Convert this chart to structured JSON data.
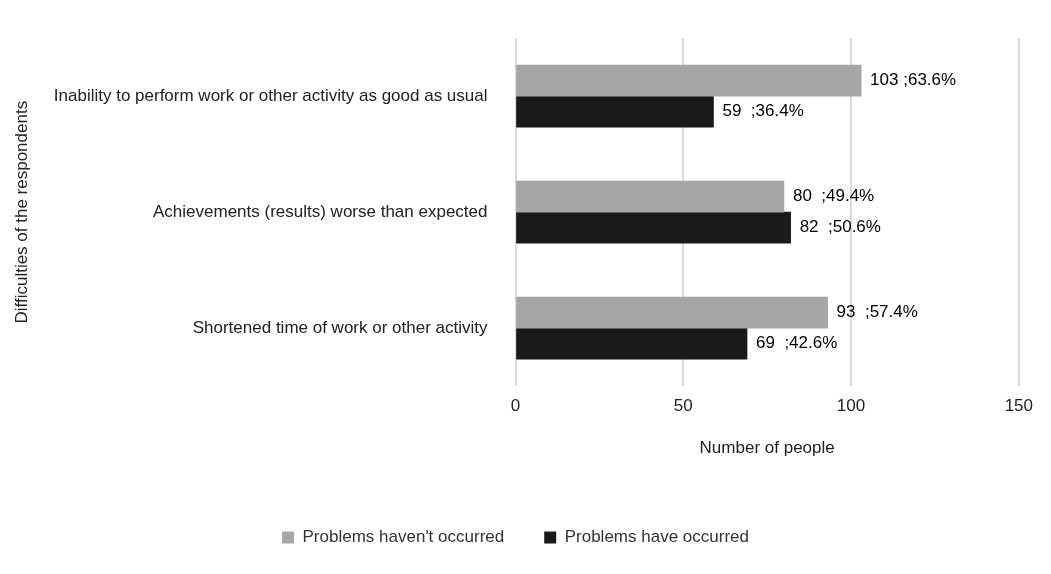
{
  "chart_data": {
    "type": "bar",
    "orientation": "horizontal",
    "xlabel": "Number of people",
    "ylabel": "Difficulties of the respondents",
    "categories": [
      "Inability to perform work or other activity as good as usual",
      "Achievements (results) worse than expected",
      "Shortened time of work or other activity"
    ],
    "series": [
      {
        "name": "Problems haven't occurred",
        "color": "#a6a6a6",
        "values": [
          103,
          80,
          93
        ],
        "value_labels": [
          "103 ;63.6%",
          "80  ;49.4%",
          "93  ;57.4%"
        ]
      },
      {
        "name": "Problems have occurred",
        "color": "#1a1a1a",
        "values": [
          59,
          82,
          69
        ],
        "value_labels": [
          "59  ;36.4%",
          "82  ;50.6%",
          "69  ;42.6%"
        ]
      }
    ],
    "xlim": [
      0,
      150
    ],
    "xticks": [
      0,
      50,
      100,
      150
    ],
    "grid": "x",
    "legend": "bottom"
  }
}
